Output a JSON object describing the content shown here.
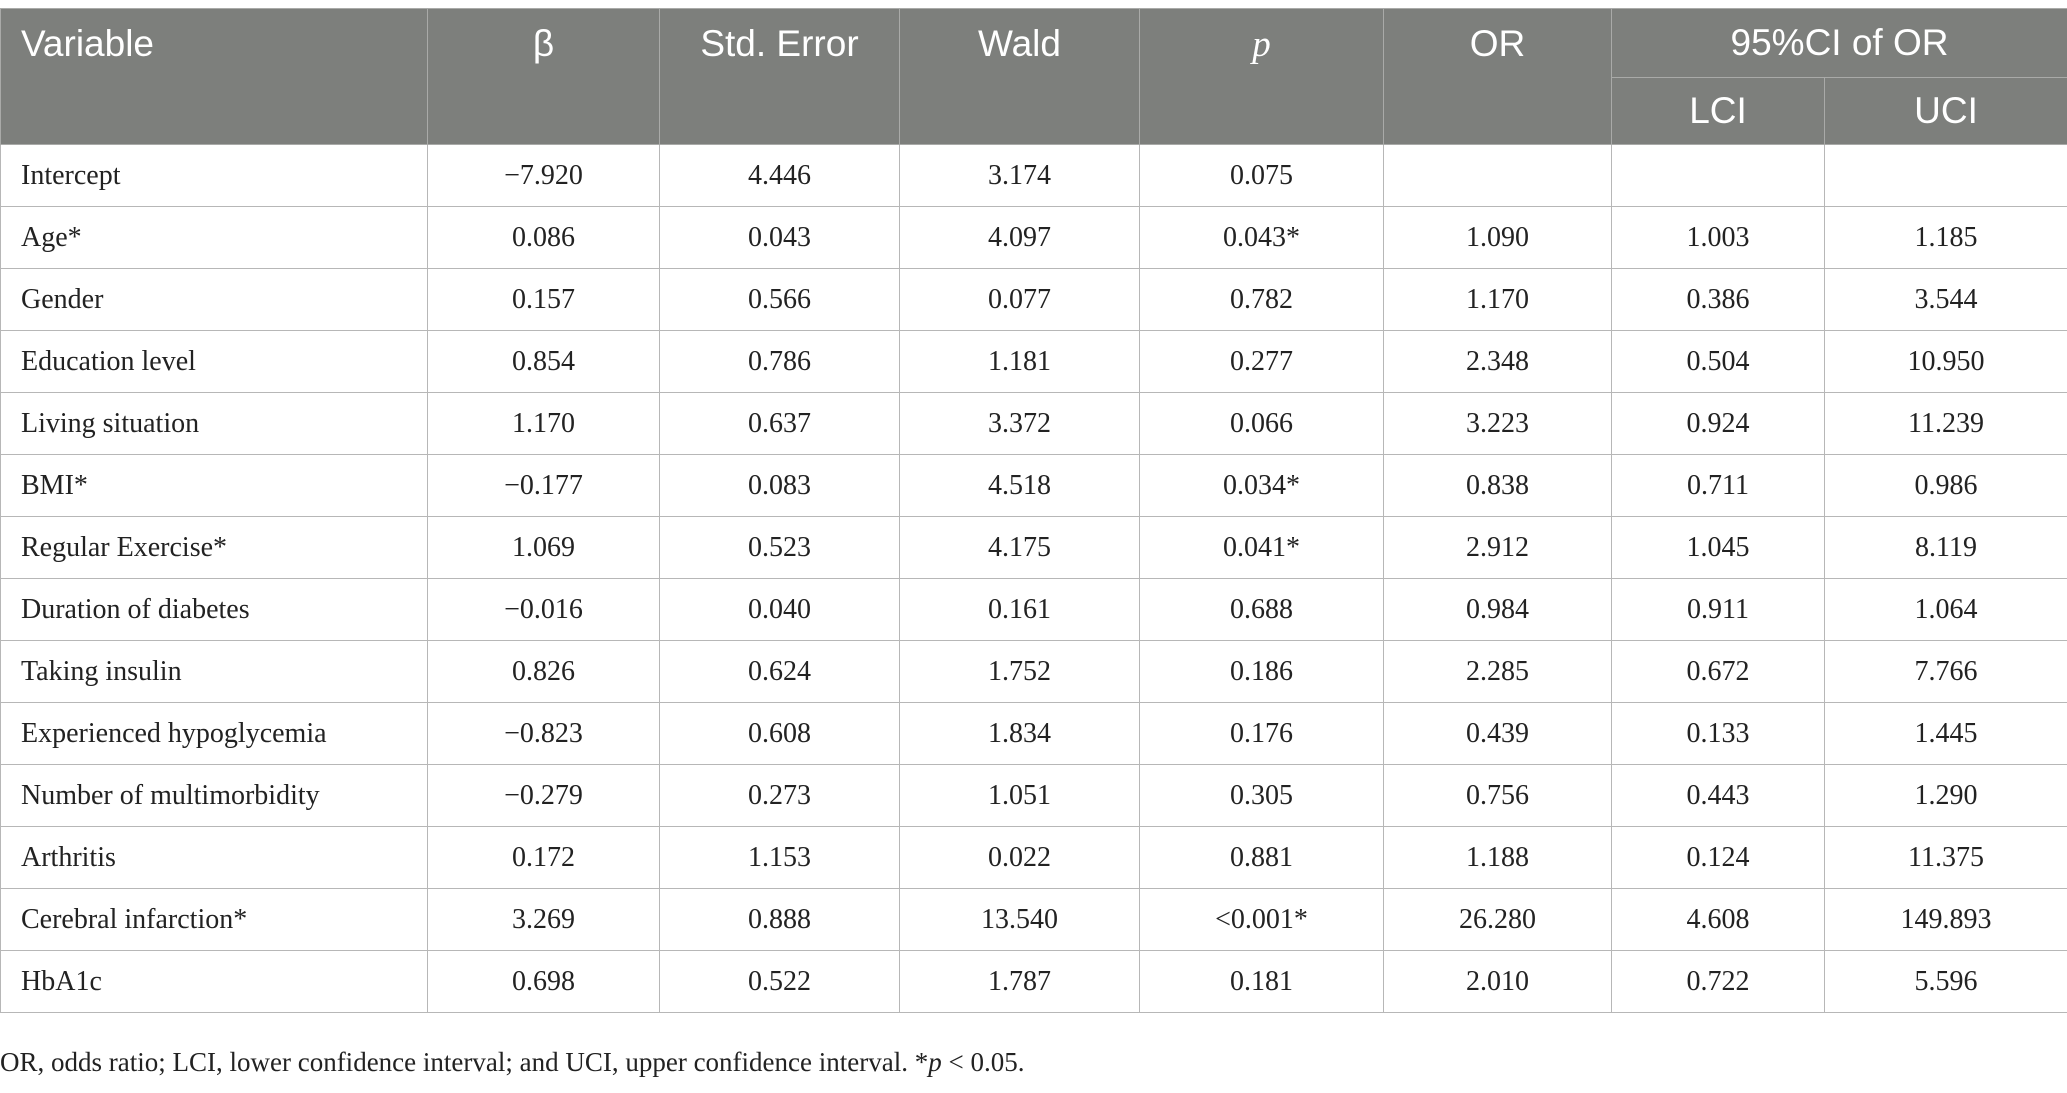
{
  "table": {
    "headers": {
      "variable": "Variable",
      "beta": "β",
      "std_error": "Std. Error",
      "wald": "Wald",
      "p": "p",
      "or": "OR",
      "ci_group": "95%CI of OR",
      "lci": "LCI",
      "uci": "UCI"
    },
    "rows": [
      {
        "variable": "Intercept",
        "beta": "−7.920",
        "std_error": "4.446",
        "wald": "3.174",
        "p": "0.075",
        "or": "",
        "lci": "",
        "uci": ""
      },
      {
        "variable": "Age*",
        "beta": "0.086",
        "std_error": "0.043",
        "wald": "4.097",
        "p": "0.043*",
        "or": "1.090",
        "lci": "1.003",
        "uci": "1.185"
      },
      {
        "variable": "Gender",
        "beta": "0.157",
        "std_error": "0.566",
        "wald": "0.077",
        "p": "0.782",
        "or": "1.170",
        "lci": "0.386",
        "uci": "3.544"
      },
      {
        "variable": "Education level",
        "beta": "0.854",
        "std_error": "0.786",
        "wald": "1.181",
        "p": "0.277",
        "or": "2.348",
        "lci": "0.504",
        "uci": "10.950"
      },
      {
        "variable": "Living situation",
        "beta": "1.170",
        "std_error": "0.637",
        "wald": "3.372",
        "p": "0.066",
        "or": "3.223",
        "lci": "0.924",
        "uci": "11.239"
      },
      {
        "variable": "BMI*",
        "beta": "−0.177",
        "std_error": "0.083",
        "wald": "4.518",
        "p": "0.034*",
        "or": "0.838",
        "lci": "0.711",
        "uci": "0.986"
      },
      {
        "variable": "Regular Exercise*",
        "beta": "1.069",
        "std_error": "0.523",
        "wald": "4.175",
        "p": "0.041*",
        "or": "2.912",
        "lci": "1.045",
        "uci": "8.119"
      },
      {
        "variable": "Duration of diabetes",
        "beta": "−0.016",
        "std_error": "0.040",
        "wald": "0.161",
        "p": "0.688",
        "or": "0.984",
        "lci": "0.911",
        "uci": "1.064"
      },
      {
        "variable": "Taking insulin",
        "beta": "0.826",
        "std_error": "0.624",
        "wald": "1.752",
        "p": "0.186",
        "or": "2.285",
        "lci": "0.672",
        "uci": "7.766"
      },
      {
        "variable": "Experienced hypoglycemia",
        "beta": "−0.823",
        "std_error": "0.608",
        "wald": "1.834",
        "p": "0.176",
        "or": "0.439",
        "lci": "0.133",
        "uci": "1.445"
      },
      {
        "variable": "Number of multimorbidity",
        "beta": "−0.279",
        "std_error": "0.273",
        "wald": "1.051",
        "p": "0.305",
        "or": "0.756",
        "lci": "0.443",
        "uci": "1.290"
      },
      {
        "variable": "Arthritis",
        "beta": "0.172",
        "std_error": "1.153",
        "wald": "0.022",
        "p": "0.881",
        "or": "1.188",
        "lci": "0.124",
        "uci": "11.375"
      },
      {
        "variable": "Cerebral infarction*",
        "beta": "3.269",
        "std_error": "0.888",
        "wald": "13.540",
        "p": "<0.001*",
        "or": "26.280",
        "lci": "4.608",
        "uci": "149.893"
      },
      {
        "variable": "HbA1c",
        "beta": "0.698",
        "std_error": "0.522",
        "wald": "1.787",
        "p": "0.181",
        "or": "2.010",
        "lci": "0.722",
        "uci": "5.596"
      }
    ]
  },
  "footnote": {
    "part1": "OR, odds ratio; LCI, lower confidence interval; and UCI, upper confidence interval. *",
    "p_symbol": "p",
    "part2": " < 0.05."
  }
}
